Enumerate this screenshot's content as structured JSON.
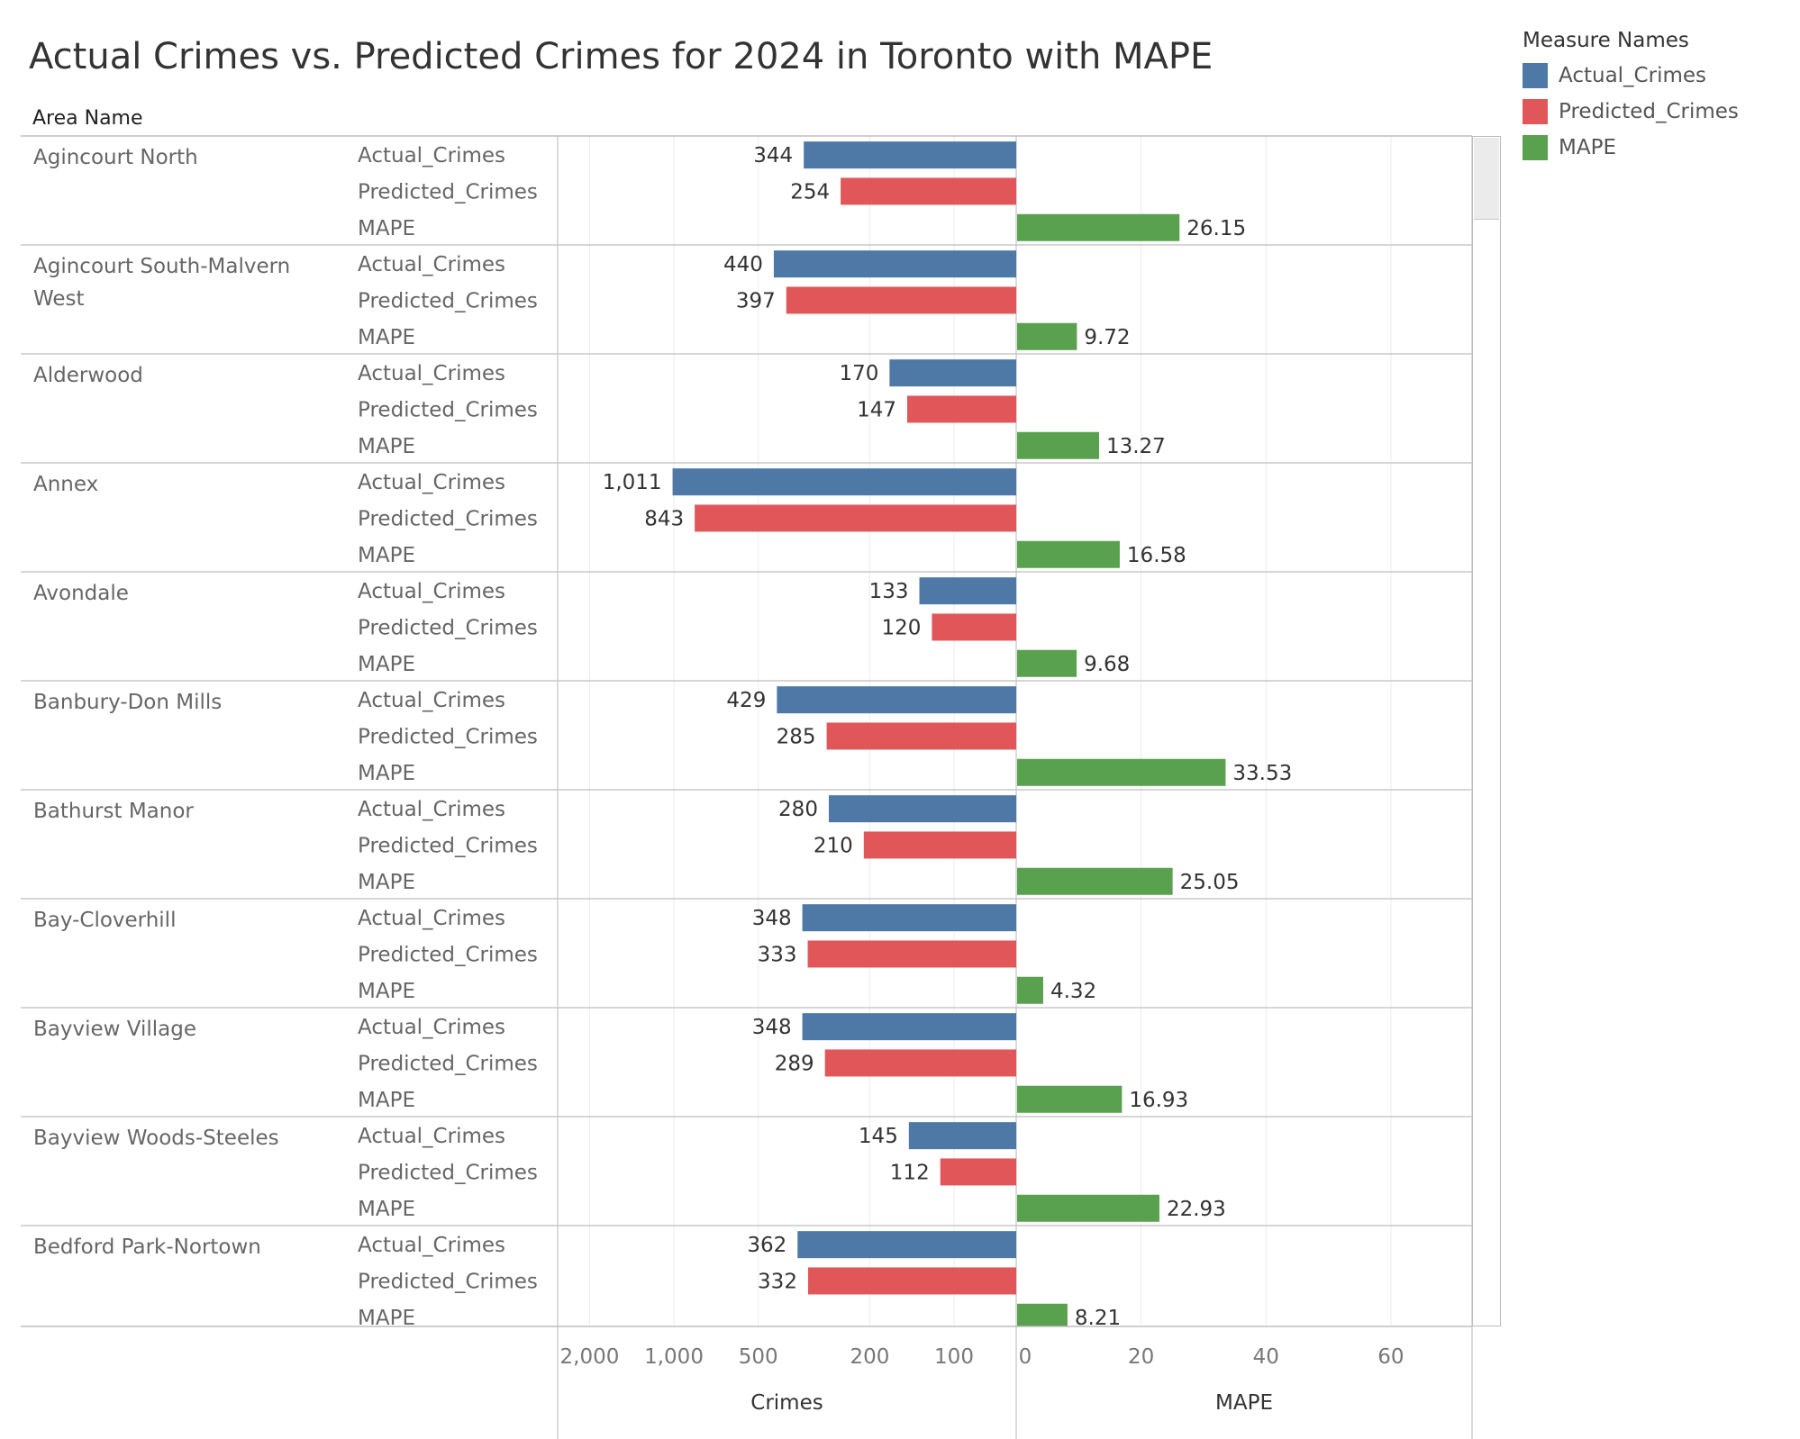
{
  "title": "Actual Crimes vs. Predicted Crimes for 2024 in Toronto with MAPE",
  "row_header": "Area Name",
  "legend": {
    "title": "Measure Names",
    "items": [
      {
        "label": "Actual_Crimes",
        "color": "#4e79a7"
      },
      {
        "label": "Predicted_Crimes",
        "color": "#e15759"
      },
      {
        "label": "MAPE",
        "color": "#59a14f"
      }
    ]
  },
  "chart_data": {
    "type": "bar",
    "orientation": "horizontal",
    "measures": [
      "Actual_Crimes",
      "Predicted_Crimes",
      "MAPE"
    ],
    "areas": [
      {
        "name": "Agincourt North",
        "actual": 344,
        "predicted": 254,
        "mape": 26.15
      },
      {
        "name": "Agincourt South-Malvern West",
        "actual": 440,
        "predicted": 397,
        "mape": 9.72
      },
      {
        "name": "Alderwood",
        "actual": 170,
        "predicted": 147,
        "mape": 13.27
      },
      {
        "name": "Annex",
        "actual": 1011,
        "predicted": 843,
        "mape": 16.58
      },
      {
        "name": "Avondale",
        "actual": 133,
        "predicted": 120,
        "mape": 9.68
      },
      {
        "name": "Banbury-Don Mills",
        "actual": 429,
        "predicted": 285,
        "mape": 33.53
      },
      {
        "name": "Bathurst Manor",
        "actual": 280,
        "predicted": 210,
        "mape": 25.05
      },
      {
        "name": "Bay-Cloverhill",
        "actual": 348,
        "predicted": 333,
        "mape": 4.32
      },
      {
        "name": "Bayview Village",
        "actual": 348,
        "predicted": 289,
        "mape": 16.93
      },
      {
        "name": "Bayview Woods-Steeles",
        "actual": 145,
        "predicted": 112,
        "mape": 22.93
      },
      {
        "name": "Bedford Park-Nortown",
        "actual": 362,
        "predicted": 332,
        "mape": 8.21
      }
    ],
    "crimes_axis": {
      "label": "Crimes",
      "scale": "log",
      "reversed": true,
      "ticks": [
        2000,
        1000,
        500,
        200,
        100
      ],
      "tick_labels": [
        "2,000",
        "1,000",
        "500",
        "200",
        "100"
      ]
    },
    "mape_axis": {
      "label": "MAPE",
      "scale": "linear",
      "range": [
        0,
        73
      ],
      "ticks": [
        0,
        20,
        40,
        60
      ],
      "tick_labels": [
        "0",
        "20",
        "40",
        "60"
      ]
    },
    "colors": {
      "actual": "#4e79a7",
      "predicted": "#e15759",
      "mape": "#59a14f"
    }
  }
}
